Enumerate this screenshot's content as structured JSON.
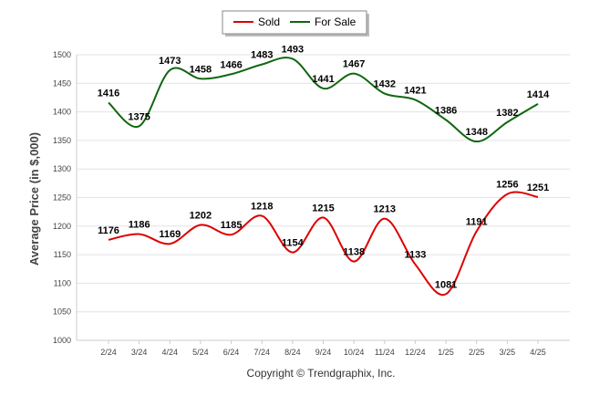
{
  "chart_data": {
    "type": "line",
    "categories": [
      "2/24",
      "3/24",
      "4/24",
      "5/24",
      "6/24",
      "7/24",
      "8/24",
      "9/24",
      "10/24",
      "11/24",
      "12/24",
      "1/25",
      "2/25",
      "3/25",
      "4/25"
    ],
    "series": [
      {
        "name": "Sold",
        "color": "#dd0000",
        "values": [
          1176,
          1186,
          1169,
          1202,
          1185,
          1218,
          1154,
          1215,
          1138,
          1213,
          1133,
          1081,
          1191,
          1256,
          1251
        ]
      },
      {
        "name": "For Sale",
        "color": "#116611",
        "values": [
          1416,
          1375,
          1473,
          1458,
          1466,
          1483,
          1493,
          1441,
          1467,
          1432,
          1421,
          1386,
          1348,
          1382,
          1414
        ]
      }
    ],
    "title": "",
    "xlabel": "",
    "ylabel": "Average Price (in $,000)",
    "ylim": [
      1000,
      1500
    ],
    "yticks": [
      1000,
      1050,
      1100,
      1150,
      1200,
      1250,
      1300,
      1350,
      1400,
      1450,
      1500
    ],
    "grid": true,
    "legend": "top-center"
  },
  "footer": {
    "copyright": "Copyright © Trendgraphix, Inc."
  }
}
